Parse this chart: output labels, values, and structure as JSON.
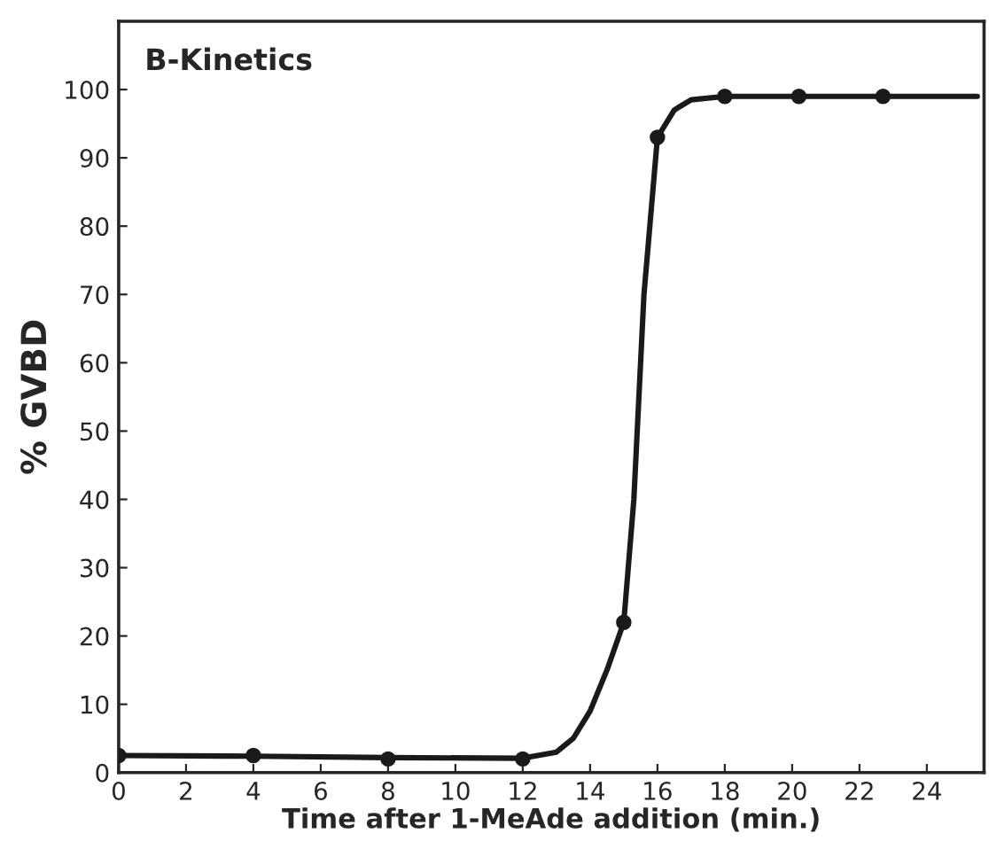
{
  "chart_data": {
    "type": "line",
    "title": "B-Kinetics",
    "xlabel": "Time after 1-MeAde addition (min.)",
    "ylabel": "% GVBD",
    "series": [
      {
        "type": "scatter",
        "color": "#1a1a1a",
        "marker": "circle",
        "x": [
          0,
          4,
          8,
          12,
          15,
          16,
          18,
          20.2,
          22.7
        ],
        "values": [
          2.5,
          2.5,
          2,
          2,
          22,
          93,
          99,
          99,
          99
        ]
      },
      {
        "color": "#1a1a1a",
        "marker": "none",
        "line_style": "solid",
        "x": [
          0,
          4,
          8,
          12,
          13,
          13.5,
          14,
          14.5,
          15,
          15.3,
          15.6,
          16,
          16.5,
          17,
          18,
          20,
          22,
          24,
          25.5
        ],
        "values": [
          2.5,
          2.4,
          2.2,
          2.1,
          3,
          5,
          9,
          15,
          22,
          40,
          70,
          93,
          97,
          98.5,
          99,
          99,
          99,
          99,
          99
        ]
      }
    ],
    "xlim": [
      0,
      25.7
    ],
    "xticks": [
      0,
      2,
      4,
      6,
      8,
      10,
      12,
      14,
      16,
      18,
      20,
      22,
      24
    ],
    "ylim": [
      0,
      110
    ],
    "yticks": [
      0,
      10,
      20,
      30,
      40,
      50,
      60,
      70,
      80,
      90,
      100
    ],
    "grid": false,
    "legend": false
  }
}
